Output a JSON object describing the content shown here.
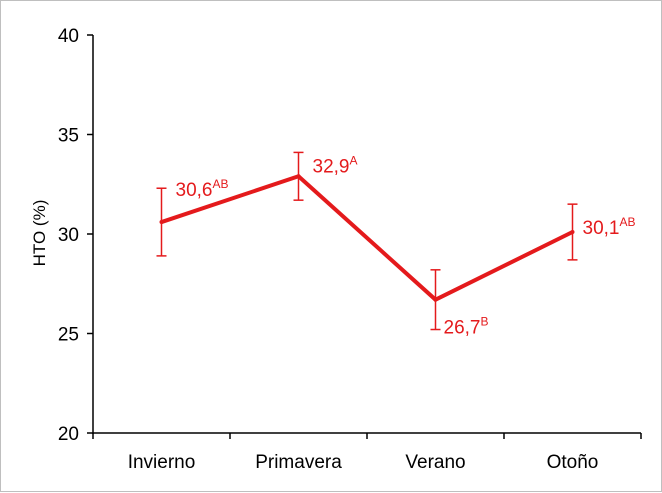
{
  "chart_data": {
    "type": "line",
    "title": "",
    "xlabel": "",
    "ylabel": "HTO (%)",
    "ylim": [
      20,
      40
    ],
    "yticks": [
      "20",
      "25",
      "30",
      "35",
      "40"
    ],
    "categories": [
      "Invierno",
      "Primavera",
      "Verano",
      "Otoño"
    ],
    "series": [
      {
        "values": [
          30.6,
          32.9,
          26.7,
          30.1
        ],
        "error_low": [
          28.9,
          31.7,
          25.2,
          28.7
        ],
        "error_high": [
          32.3,
          34.1,
          28.2,
          31.5
        ],
        "labels": [
          "30,6",
          "32,9",
          "26,7",
          "30,1"
        ],
        "superscripts": [
          "AB",
          "A",
          "B",
          "AB"
        ],
        "color": "#e41a1c"
      }
    ],
    "grid": false,
    "legend": "none"
  }
}
